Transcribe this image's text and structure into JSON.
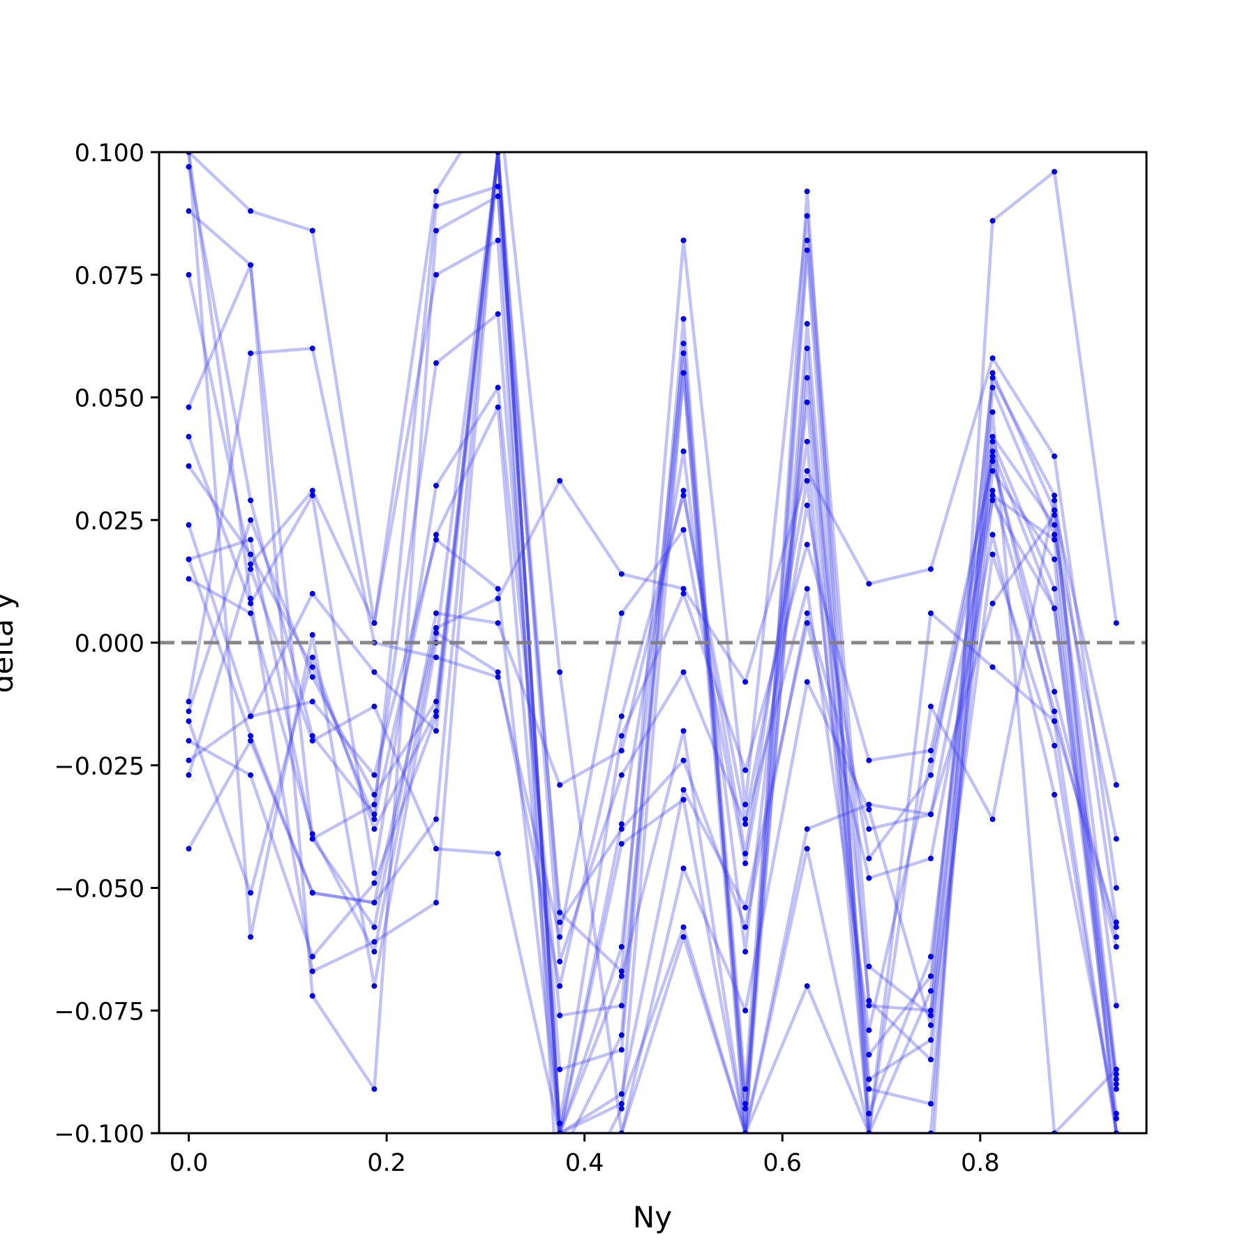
{
  "chart_data": {
    "type": "line",
    "title": "",
    "xlabel": "Ny",
    "ylabel": "delta y",
    "xlim": [
      -0.03,
      0.968
    ],
    "ylim": [
      -0.1,
      0.1
    ],
    "x_ticks": [
      0.0,
      0.2,
      0.4,
      0.6,
      0.8
    ],
    "x_tick_labels": [
      "0.0",
      "0.2",
      "0.4",
      "0.6",
      "0.8"
    ],
    "y_ticks": [
      0.1,
      0.075,
      0.05,
      0.025,
      0.0,
      -0.025,
      -0.05,
      -0.075,
      -0.1
    ],
    "y_tick_labels": [
      "0.100",
      "0.075",
      "0.050",
      "0.025",
      "0.000",
      "−0.025",
      "−0.050",
      "−0.075",
      "−0.100"
    ],
    "x": [
      0.0,
      0.0625,
      0.125,
      0.1875,
      0.25,
      0.3125,
      0.375,
      0.4375,
      0.5,
      0.5625,
      0.625,
      0.6875,
      0.75,
      0.8125,
      0.875,
      0.9375
    ],
    "reference_line": {
      "y": 0.0,
      "style": "dashed",
      "color": "#808080"
    },
    "line_color": "#3333ee",
    "marker_color": "#0000ee",
    "line_alpha": 0.3,
    "grid": false,
    "legend": "none",
    "series": [
      {
        "values": [
          0.1,
          0.088,
          0.084,
          0.004,
          0.092,
          0.112,
          -0.006,
          -0.1,
          -0.06,
          -0.1,
          0.06,
          -0.1,
          -0.11,
          0.086,
          0.096,
          0.004
        ]
      },
      {
        "values": [
          0.097,
          0.029,
          -0.019,
          -0.035,
          0.089,
          0.093,
          -0.12,
          -0.095,
          0.055,
          -0.1,
          0.092,
          -0.1,
          -0.071,
          0.055,
          0.027,
          -0.029
        ]
      },
      {
        "values": [
          0.088,
          0.077,
          -0.072,
          -0.091,
          0.084,
          0.091,
          -0.055,
          -0.067,
          0.082,
          -0.033,
          0.087,
          -0.066,
          -0.076,
          0.047,
          -0.1,
          -0.087
        ]
      },
      {
        "values": [
          0.075,
          0.016,
          0.031,
          0.004,
          0.075,
          0.082,
          -0.105,
          -0.08,
          0.066,
          -0.1,
          0.08,
          -0.096,
          -0.064,
          0.041,
          0.011,
          -0.089
        ]
      },
      {
        "values": [
          0.048,
          0.077,
          -0.04,
          -0.033,
          0.057,
          0.067,
          -0.087,
          -0.083,
          0.061,
          -0.091,
          0.082,
          -0.074,
          -0.075,
          0.039,
          0.007,
          -0.096
        ]
      },
      {
        "values": [
          0.042,
          0.008,
          0.03,
          -0.047,
          0.032,
          0.052,
          -0.076,
          -0.074,
          0.055,
          -0.094,
          0.065,
          -0.089,
          -0.081,
          0.035,
          0.017,
          -0.1
        ]
      },
      {
        "values": [
          0.036,
          0.018,
          -0.005,
          -0.036,
          0.022,
          0.048,
          -0.1,
          -0.062,
          0.059,
          -0.095,
          0.054,
          -0.073,
          -0.085,
          0.03,
          0.021,
          -0.09
        ]
      },
      {
        "values": [
          0.024,
          -0.015,
          -0.012,
          -0.027,
          0.021,
          0.011,
          -0.1,
          -0.037,
          0.039,
          -0.063,
          0.049,
          -0.091,
          -0.094,
          0.042,
          0.024,
          -0.074
        ]
      },
      {
        "values": [
          0.017,
          0.021,
          -0.04,
          -0.058,
          0.006,
          0.004,
          -0.029,
          -0.022,
          0.031,
          -0.043,
          0.041,
          -0.1,
          -0.1,
          0.052,
          0.022,
          -0.04
        ]
      },
      {
        "values": [
          0.017,
          -0.019,
          -0.051,
          -0.053,
          0.003,
          0.009,
          0.033,
          0.014,
          0.011,
          -0.008,
          0.035,
          0.012,
          0.015,
          0.058,
          0.038,
          -0.05
        ]
      },
      {
        "values": [
          0.013,
          0.006,
          -0.039,
          -0.063,
          0.002,
          -0.006,
          -0.07,
          -0.015,
          0.03,
          -0.036,
          0.033,
          -0.084,
          -0.068,
          0.054,
          0.03,
          -0.057
        ]
      },
      {
        "values": [
          -0.012,
          0.059,
          0.06,
          0.0,
          -0.003,
          -0.007,
          -0.06,
          0.006,
          0.023,
          -0.045,
          0.028,
          -0.044,
          -0.027,
          0.038,
          -0.016,
          -0.058
        ]
      },
      {
        "values": [
          -0.014,
          0.025,
          -0.007,
          -0.031,
          -0.012,
          0.1,
          -0.098,
          -0.019,
          0.01,
          -0.026,
          0.02,
          -0.024,
          -0.022,
          0.037,
          -0.01,
          -0.06
        ]
      },
      {
        "values": [
          -0.016,
          -0.051,
          -0.003,
          -0.038,
          -0.014,
          0.1,
          -0.065,
          -0.027,
          -0.006,
          -0.037,
          0.011,
          -0.079,
          -0.024,
          0.031,
          -0.014,
          -0.062
        ]
      },
      {
        "values": [
          -0.02,
          -0.027,
          -0.064,
          -0.049,
          -0.015,
          0.1,
          -0.057,
          -0.038,
          -0.024,
          -0.058,
          0.006,
          -0.038,
          -0.035,
          0.029,
          0.007,
          -0.091
        ]
      },
      {
        "values": [
          -0.024,
          -0.015,
          0.01,
          -0.006,
          -0.018,
          0.1,
          -0.1,
          -0.092,
          -0.03,
          -0.054,
          0.004,
          -0.048,
          -0.044,
          0.022,
          -0.031,
          -0.097
        ]
      },
      {
        "values": [
          -0.027,
          0.015,
          -0.02,
          -0.013,
          -0.042,
          -0.043,
          -0.1,
          -0.1,
          -0.046,
          -0.075,
          -0.008,
          -0.034,
          -0.078,
          0.018,
          -0.021,
          -0.1
        ]
      },
      {
        "values": [
          -0.042,
          -0.02,
          -0.051,
          -0.053,
          -0.036,
          0.1,
          -0.1,
          -0.094,
          -0.058,
          -0.1,
          -0.038,
          -0.033,
          -0.035,
          0.008,
          0.026,
          -0.088
        ]
      },
      {
        "values": [
          0.1,
          -0.06,
          0.0016,
          -0.07,
          0.0,
          0.1,
          -0.1,
          -0.041,
          -0.032,
          -0.1,
          -0.042,
          -0.1,
          0.006,
          -0.005,
          -0.016,
          -0.1
        ]
      },
      {
        "values": [
          0.1,
          0.009,
          -0.067,
          -0.061,
          -0.053,
          0.1,
          -0.1,
          -0.068,
          -0.018,
          -0.1,
          -0.07,
          -0.1,
          -0.013,
          -0.036,
          0.029,
          -0.1
        ]
      }
    ]
  }
}
